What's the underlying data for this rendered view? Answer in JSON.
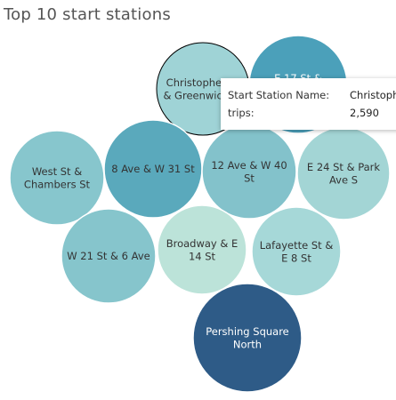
{
  "title": "Top 10 start stations",
  "chart_data": {
    "type": "bubble",
    "title": "Top 10 start stations",
    "measure": "trips",
    "bubbles": [
      {
        "label": "E 17 St & Broadway",
        "label_lines": [
          "E 17 St &",
          ""
        ],
        "color": "#4ba0ba",
        "text_color": "#ffffff"
      },
      {
        "label": "Christopher St & Greenwich St",
        "label_lines": [
          "Christopher St",
          "& Greenwich St"
        ],
        "value": 2590,
        "color": "#9fd3d6",
        "text_color": "#333333",
        "selected": true
      },
      {
        "label": "West St & Chambers St",
        "label_lines": [
          "West St &",
          "Chambers St"
        ],
        "color": "#87c6cd",
        "text_color": "#333333"
      },
      {
        "label": "8 Ave & W 31 St",
        "label_lines": [
          "8 Ave & W 31 St"
        ],
        "color": "#5aa9bc",
        "text_color": "#333333"
      },
      {
        "label": "12 Ave & W 40 St",
        "label_lines": [
          "12 Ave & W 40",
          "St"
        ],
        "color": "#83c2cb",
        "text_color": "#333333"
      },
      {
        "label": "E 24 St & Park Ave S",
        "label_lines": [
          "E 24 St & Park",
          "Ave S"
        ],
        "color": "#a3d5d5",
        "text_color": "#333333"
      },
      {
        "label": "W 21 St & 6 Ave",
        "label_lines": [
          "W 21 St & 6 Ave"
        ],
        "color": "#86c5cc",
        "text_color": "#333333"
      },
      {
        "label": "Broadway & E 14 St",
        "label_lines": [
          "Broadway & E",
          "14 St"
        ],
        "color": "#bce3d9",
        "text_color": "#333333"
      },
      {
        "label": "Lafayette St & E 8 St",
        "label_lines": [
          "Lafayette St &",
          "E 8 St"
        ],
        "color": "#a6d8d8",
        "text_color": "#333333"
      },
      {
        "label": "Pershing Square North",
        "label_lines": [
          "Pershing Square",
          "North"
        ],
        "color": "#2e5b87",
        "text_color": "#ffffff"
      }
    ]
  },
  "tooltip": {
    "station_label": "Start Station Name:",
    "station_value": "Christopher St & Greenwich St",
    "trips_label": "trips:",
    "trips_value": "2,590"
  }
}
